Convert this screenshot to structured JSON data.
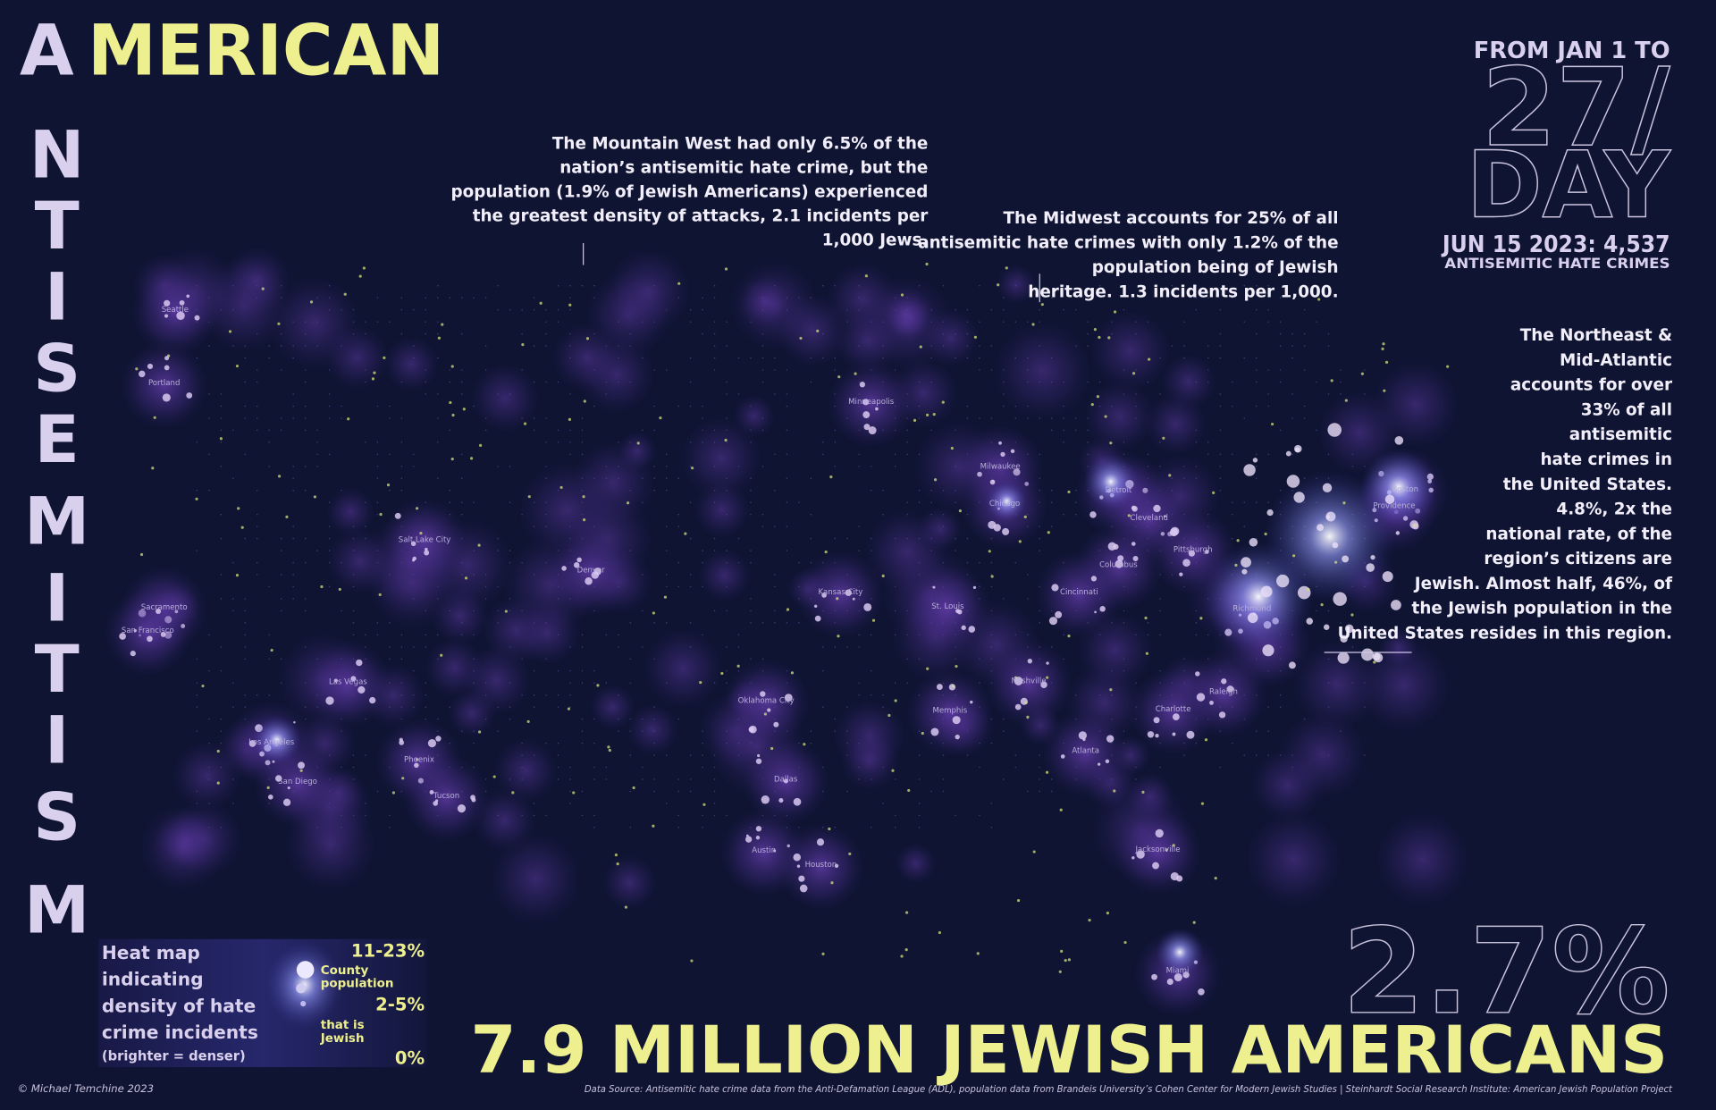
{
  "title": {
    "first_letter": "A",
    "rest": "MERICAN",
    "vertical_letters": [
      "N",
      "T",
      "I",
      "S",
      "E",
      "M",
      "I",
      "T",
      "I",
      "S",
      "M"
    ]
  },
  "header": {
    "from": "FROM JAN 1 TO",
    "rate_top": "27/",
    "rate_bottom": "DAY",
    "date_count": "JUN 15 2023: 4,537",
    "count_label": "ANTISEMITIC HATE CRIMES"
  },
  "annotations": {
    "mountain_west": [
      "The Mountain West had only 6.5% of the",
      "nation’s antisemitic hate crime, but the",
      "population (1.9% of Jewish Americans) experienced",
      "the greatest density of attacks, 2.1 incidents per",
      "1,000 Jews."
    ],
    "midwest": [
      "The Midwest accounts for 25% of all",
      "antisemitic hate crimes with only 1.2% of the",
      "population being of Jewish",
      "heritage.  1.3 incidents per 1,000."
    ],
    "northeast": [
      "The Northeast &",
      "Mid-Atlantic",
      "accounts for over",
      "33% of all",
      "antisemitic",
      "hate crimes in",
      "the United States.",
      "4.8%, 2x the",
      "national rate, of the",
      "region’s citizens are",
      "Jewish. Almost half, 46%, of",
      "the Jewish population in the",
      "United States resides in this region."
    ]
  },
  "cities": [
    "Seattle",
    "Portland",
    "Sacramento",
    "San Francisco",
    "Las Vegas",
    "Los Angeles",
    "San Diego",
    "Phoenix",
    "Tucson",
    "Salt Lake City",
    "Denver",
    "Minneapolis",
    "Kansas City",
    "St. Louis",
    "Oklahoma City",
    "Dallas",
    "Austin",
    "Houston",
    "Memphis",
    "Nashville",
    "Milwaukee",
    "Chicago",
    "Detroit",
    "Cleveland",
    "Pittsburgh",
    "Columbus",
    "Cincinnati",
    "Atlanta",
    "Charlotte",
    "Raleigh",
    "Jacksonville",
    "Miami",
    "Boston",
    "Providence",
    "Richmond"
  ],
  "legend": {
    "description": [
      "Heat map",
      "indicating",
      "density of hate",
      "crime incidents"
    ],
    "note": "(brighter = denser)",
    "high": "11-23%",
    "county": [
      "County",
      "population"
    ],
    "mid": "2-5%",
    "jewish": [
      "that is",
      "Jewish"
    ],
    "low": "0%"
  },
  "footer": {
    "share": "2.7%",
    "headline": "7.9 MILLION JEWISH AMERICANS",
    "credit": "© Michael Temchine 2023",
    "source": "Data Source: Antisemitic hate crime data from the Anti-Defamation League (ADL), population data from Brandeis University’s Cohen Center for Modern Jewish Studies | Steinhardt Social Research Institute: American Jewish Population Project"
  }
}
